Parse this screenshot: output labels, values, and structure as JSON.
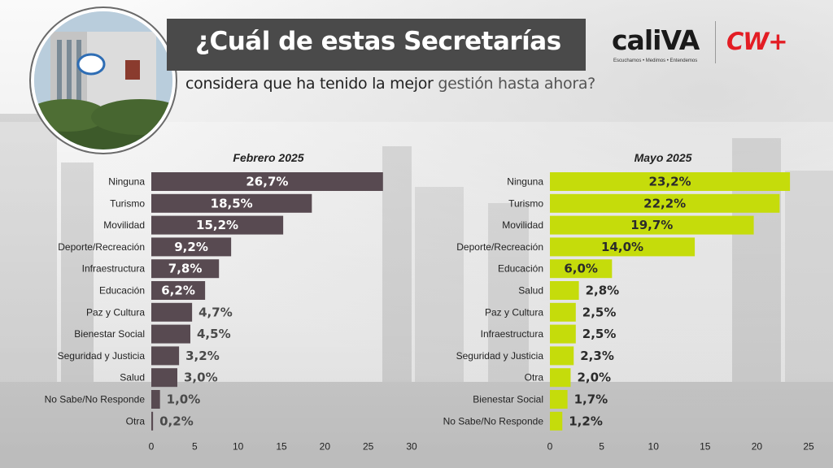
{
  "header": {
    "title": "¿Cuál de estas Secretarías",
    "subtitle_prefix": "considera que ha tenido la mejor",
    "subtitle_suffix": "gestión hasta ahora?"
  },
  "logos": {
    "cali_word": "caliVA",
    "cali_tagline": "Escuchamos • Medimos • Entendemos",
    "cw": "CW+"
  },
  "colors": {
    "title_band": "#4a4a4a",
    "left_bar": "#584a51",
    "right_bar": "#c5dc0b",
    "cw_red": "#e31d24"
  },
  "chart_data": [
    {
      "type": "bar",
      "orientation": "horizontal",
      "title": "Febrero 2025",
      "categories": [
        "Ninguna",
        "Turismo",
        "Movilidad",
        "Deporte/Recreación",
        "Infraestructura",
        "Educación",
        "Paz y Cultura",
        "Bienestar Social",
        "Seguridad y Justicia",
        "Salud",
        "No Sabe/No Responde",
        "Otra"
      ],
      "values": [
        26.7,
        18.5,
        15.2,
        9.2,
        7.8,
        6.2,
        4.7,
        4.5,
        3.2,
        3.0,
        1.0,
        0.2
      ],
      "value_labels": [
        "26,7%",
        "18,5%",
        "15,2%",
        "9,2%",
        "7,8%",
        "6,2%",
        "4,7%",
        "4,5%",
        "3,2%",
        "3,0%",
        "1,0%",
        "0,2%"
      ],
      "xlim": [
        0,
        30
      ],
      "xticks": [
        0,
        5,
        10,
        15,
        20,
        25,
        30
      ],
      "grid": false,
      "color": "#584a51"
    },
    {
      "type": "bar",
      "orientation": "horizontal",
      "title": "Mayo 2025",
      "categories": [
        "Ninguna",
        "Turismo",
        "Movilidad",
        "Deporte/Recreación",
        "Educación",
        "Salud",
        "Paz y Cultura",
        "Infraestructura",
        "Seguridad y Justicia",
        "Otra",
        "Bienestar Social",
        "No Sabe/No Responde"
      ],
      "values": [
        23.2,
        22.2,
        19.7,
        14.0,
        6.0,
        2.8,
        2.5,
        2.5,
        2.3,
        2.0,
        1.7,
        1.2
      ],
      "value_labels": [
        "23,2%",
        "22,2%",
        "19,7%",
        "14,0%",
        "6,0%",
        "2,8%",
        "2,5%",
        "2,5%",
        "2,3%",
        "2,0%",
        "1,7%",
        "1,2%"
      ],
      "xlim": [
        0,
        25
      ],
      "xticks": [
        0,
        5,
        10,
        15,
        20,
        25
      ],
      "grid": false,
      "color": "#c5dc0b"
    }
  ]
}
